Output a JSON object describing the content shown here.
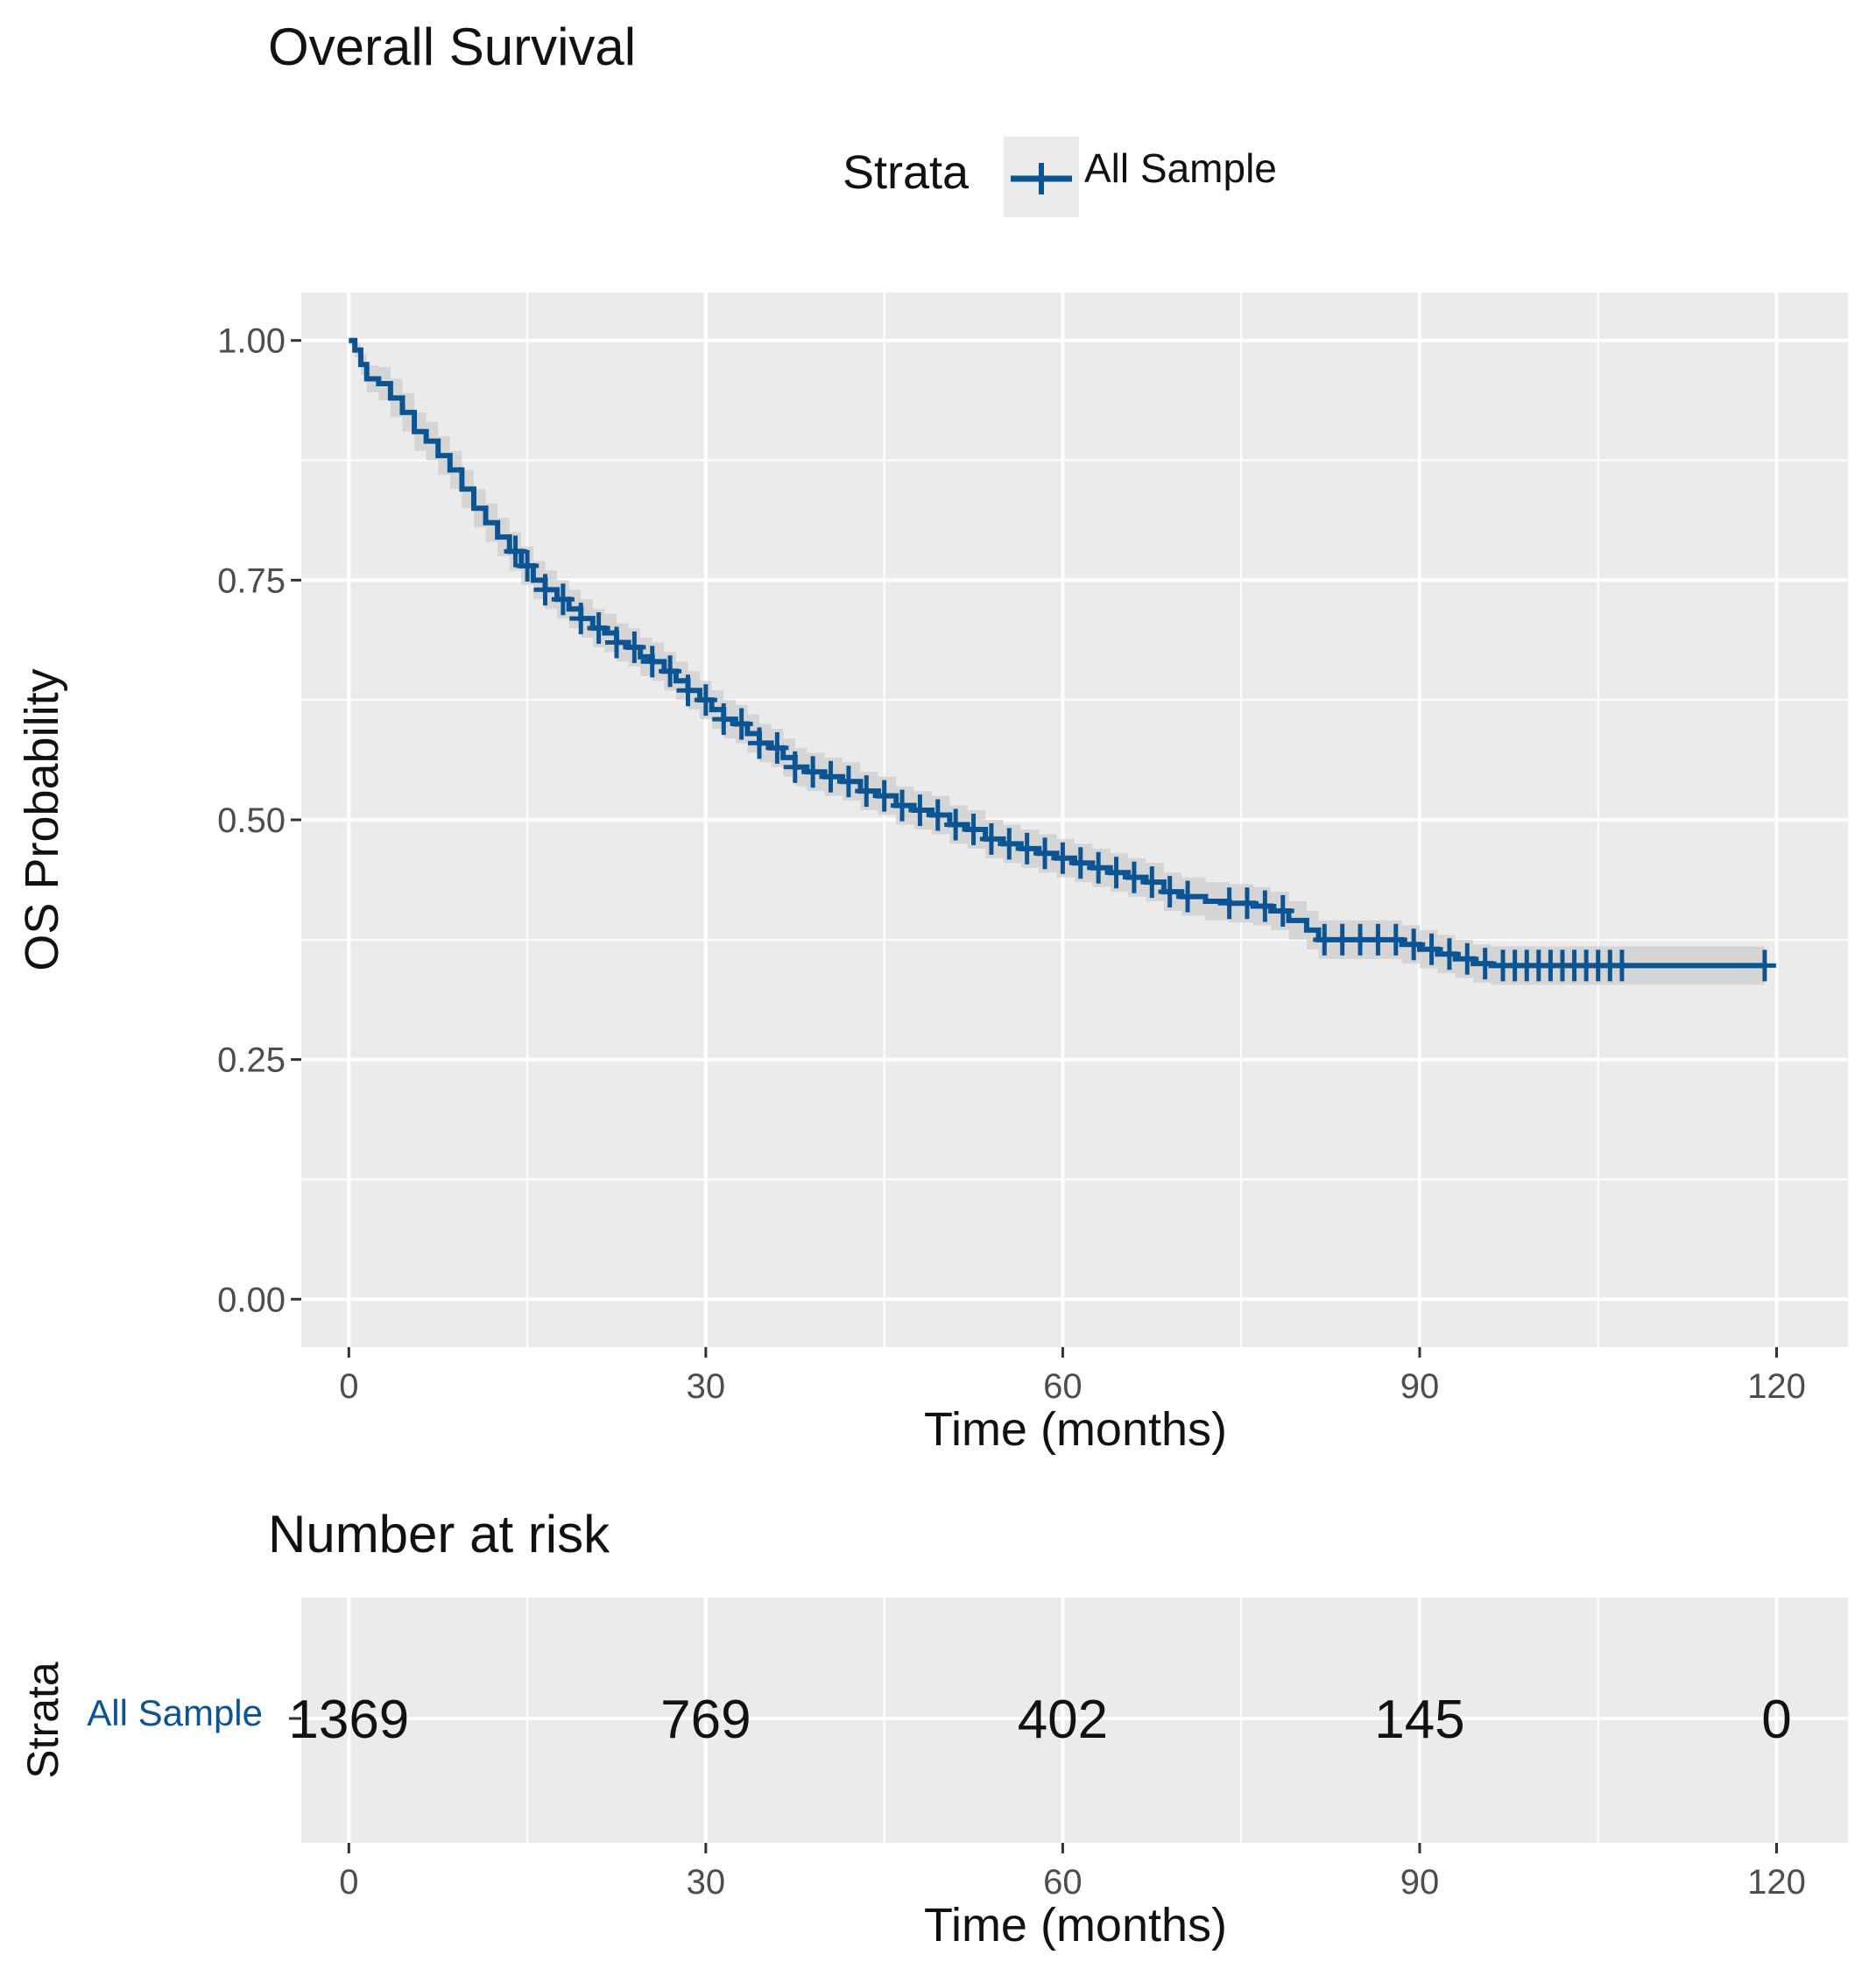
{
  "colors": {
    "curve": "#0B5494",
    "ci_band": "#CDCDCD",
    "panel_bg": "#EBEBEB",
    "grid": "#FFFFFF",
    "text": "#111111",
    "tick_text": "#4D4D4D"
  },
  "chart_data": [
    {
      "type": "line",
      "subtype": "kaplan-meier",
      "title": "Overall Survival",
      "legend": {
        "title": "Strata",
        "entries": [
          "All Sample"
        ],
        "placement": "top-center"
      },
      "xlabel": "Time (months)",
      "ylabel": "OS Probability",
      "xlim": [
        -4,
        126
      ],
      "ylim": [
        -0.05,
        1.05
      ],
      "xticks": [
        0,
        30,
        60,
        90,
        120
      ],
      "yticks": [
        0.0,
        0.25,
        0.5,
        0.75,
        1.0
      ],
      "xtick_labels": [
        "0",
        "30",
        "60",
        "90",
        "120"
      ],
      "ytick_labels": [
        "0.00",
        "0.25",
        "0.50",
        "0.75",
        "1.00"
      ],
      "grid": true,
      "ci_halfwidth": 0.02,
      "series": [
        {
          "name": "All Sample",
          "steps": [
            [
              0,
              1.0
            ],
            [
              0.5,
              0.99
            ],
            [
              1,
              0.975
            ],
            [
              1.5,
              0.96
            ],
            [
              2.5,
              0.955
            ],
            [
              3.5,
              0.94
            ],
            [
              4.5,
              0.925
            ],
            [
              5.5,
              0.905
            ],
            [
              6.5,
              0.895
            ],
            [
              7.5,
              0.88
            ],
            [
              8.5,
              0.865
            ],
            [
              9.5,
              0.845
            ],
            [
              10.5,
              0.825
            ],
            [
              11.5,
              0.81
            ],
            [
              12.5,
              0.795
            ],
            [
              13.5,
              0.78
            ],
            [
              14.5,
              0.765
            ],
            [
              15.5,
              0.75
            ],
            [
              16.5,
              0.74
            ],
            [
              17.5,
              0.73
            ],
            [
              18.5,
              0.72
            ],
            [
              19.5,
              0.71
            ],
            [
              20.5,
              0.7
            ],
            [
              21.5,
              0.695
            ],
            [
              22.5,
              0.685
            ],
            [
              23.5,
              0.68
            ],
            [
              24.5,
              0.67
            ],
            [
              25.5,
              0.665
            ],
            [
              26.5,
              0.655
            ],
            [
              27.5,
              0.645
            ],
            [
              28.5,
              0.635
            ],
            [
              29.5,
              0.625
            ],
            [
              30.5,
              0.615
            ],
            [
              31.5,
              0.605
            ],
            [
              32.5,
              0.6
            ],
            [
              33.5,
              0.59
            ],
            [
              34.5,
              0.58
            ],
            [
              35.5,
              0.575
            ],
            [
              36.5,
              0.565
            ],
            [
              37.5,
              0.555
            ],
            [
              38.5,
              0.55
            ],
            [
              40,
              0.545
            ],
            [
              41.5,
              0.54
            ],
            [
              43,
              0.53
            ],
            [
              44.5,
              0.525
            ],
            [
              46,
              0.515
            ],
            [
              47.5,
              0.51
            ],
            [
              49,
              0.505
            ],
            [
              50.5,
              0.495
            ],
            [
              52,
              0.49
            ],
            [
              53.5,
              0.48
            ],
            [
              55,
              0.475
            ],
            [
              56.5,
              0.47
            ],
            [
              58,
              0.465
            ],
            [
              59.5,
              0.46
            ],
            [
              61,
              0.455
            ],
            [
              62.5,
              0.45
            ],
            [
              64,
              0.445
            ],
            [
              65.5,
              0.44
            ],
            [
              67,
              0.435
            ],
            [
              68.5,
              0.425
            ],
            [
              70,
              0.42
            ],
            [
              72,
              0.415
            ],
            [
              74,
              0.413
            ],
            [
              76,
              0.41
            ],
            [
              77.5,
              0.405
            ],
            [
              79,
              0.395
            ],
            [
              80.5,
              0.385
            ],
            [
              81.5,
              0.375
            ],
            [
              84,
              0.375
            ],
            [
              87,
              0.375
            ],
            [
              88.5,
              0.37
            ],
            [
              90,
              0.365
            ],
            [
              91.5,
              0.36
            ],
            [
              93,
              0.355
            ],
            [
              94.5,
              0.35
            ],
            [
              96,
              0.348
            ],
            [
              108,
              0.348
            ],
            [
              119,
              0.348
            ]
          ],
          "censor_times": [
            14,
            15,
            16.5,
            18,
            19.5,
            21,
            22.5,
            24,
            25.5,
            27,
            28.5,
            30,
            31.5,
            33,
            34.5,
            36,
            37.5,
            39,
            40.5,
            42,
            43.5,
            45,
            46.5,
            48,
            49.5,
            51,
            52.5,
            54,
            55.5,
            57,
            58.5,
            60,
            61.5,
            63,
            64.5,
            66,
            67.5,
            69,
            70.5,
            74,
            75.5,
            77,
            78.5,
            82,
            83.5,
            85,
            86.5,
            88,
            89.5,
            91,
            92.5,
            94,
            95.5,
            97,
            98,
            99,
            100,
            101,
            102,
            103,
            104,
            105,
            106,
            107,
            119
          ]
        }
      ]
    },
    {
      "type": "table",
      "title": "Number at risk",
      "ylabel": "Strata",
      "xlabel": "Time (months)",
      "xlim": [
        -4,
        126
      ],
      "xticks": [
        0,
        30,
        60,
        90,
        120
      ],
      "xtick_labels": [
        "0",
        "30",
        "60",
        "90",
        "120"
      ],
      "rows": [
        {
          "label": "All Sample",
          "times": [
            0,
            30,
            60,
            90,
            120
          ],
          "values": [
            "1369",
            "769",
            "402",
            "145",
            "0"
          ]
        }
      ]
    }
  ]
}
